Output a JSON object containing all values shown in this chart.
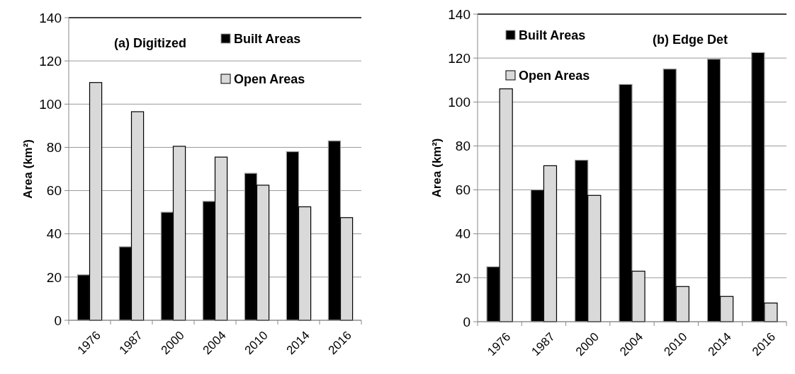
{
  "chart_data": [
    {
      "type": "bar",
      "title": "(a) Digitized",
      "ylabel": "Area (km²)",
      "categories": [
        "1976",
        "1987",
        "2000",
        "2004",
        "2010",
        "2014",
        "2016"
      ],
      "series": [
        {
          "name": "Built Areas",
          "color": "#000000",
          "values": [
            21,
            34,
            50,
            55,
            68,
            78,
            83
          ]
        },
        {
          "name": "Open Areas",
          "color": "#d9d9d9",
          "values": [
            110,
            96.5,
            80.5,
            75.5,
            62.5,
            52.5,
            47.5
          ]
        }
      ],
      "ylim": [
        0,
        140
      ],
      "yticks": [
        0,
        20,
        40,
        60,
        80,
        100,
        120,
        140
      ],
      "grid": "y",
      "legend": "top right"
    },
    {
      "type": "bar",
      "title": "(b) Edge Det",
      "ylabel": "Area (km²)",
      "categories": [
        "1976",
        "1987",
        "2000",
        "2004",
        "2010",
        "2014",
        "2016"
      ],
      "series": [
        {
          "name": "Built Areas",
          "color": "#000000",
          "values": [
            25,
            60,
            73.5,
            108,
            115,
            119.5,
            122.5
          ]
        },
        {
          "name": "Open Areas",
          "color": "#d9d9d9",
          "values": [
            106,
            71,
            57.5,
            23,
            16,
            11.5,
            8.5
          ]
        }
      ],
      "ylim": [
        0,
        140
      ],
      "yticks": [
        0,
        20,
        40,
        60,
        80,
        100,
        120,
        140
      ],
      "grid": "y",
      "legend": "top left"
    }
  ]
}
